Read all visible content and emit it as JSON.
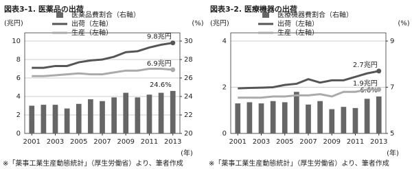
{
  "chart_data": [
    {
      "type": "bar-line",
      "title": "図表3-1. 医薬品の出荷",
      "y_label": "(兆円)",
      "y2_label": "(%)",
      "x_label": "(年)",
      "note": "※「薬事工業生産動態統計」（厚生労働省）より、筆者作成",
      "x": [
        2001,
        2002,
        2003,
        2004,
        2005,
        2006,
        2007,
        2008,
        2009,
        2010,
        2011,
        2012,
        2013
      ],
      "xlim": [
        2000.4,
        2013.6
      ],
      "xticks": [
        2001,
        2003,
        2005,
        2007,
        2009,
        2011,
        2013
      ],
      "ylim": [
        0,
        10
      ],
      "yticks": [
        0,
        2,
        4,
        6,
        8,
        10
      ],
      "y2lim": [
        20,
        30
      ],
      "y2ticks": [
        20,
        22,
        24,
        26,
        28,
        30
      ],
      "grid": true,
      "series": [
        {
          "name": "医薬品費割合（右軸）",
          "kind": "bar",
          "axis": "y2",
          "color": "#666666",
          "values": [
            23.0,
            23.1,
            23.1,
            22.7,
            23.2,
            23.7,
            23.5,
            23.9,
            24.4,
            23.9,
            24.2,
            24.4,
            24.6
          ],
          "value_labels": [
            null,
            null,
            null,
            null,
            null,
            null,
            null,
            null,
            null,
            null,
            null,
            null,
            "24.6%"
          ]
        },
        {
          "name": "出荷（左軸）",
          "kind": "line",
          "color": "#555555",
          "values": [
            7.1,
            7.1,
            7.3,
            7.3,
            7.7,
            7.9,
            8.0,
            8.3,
            8.8,
            8.9,
            9.3,
            9.6,
            9.8
          ],
          "value_labels": [
            null,
            null,
            null,
            null,
            null,
            null,
            null,
            null,
            null,
            null,
            null,
            null,
            "9.8兆円"
          ]
        },
        {
          "name": "生産（左軸）",
          "kind": "line",
          "color": "#aaaaaa",
          "values": [
            6.2,
            6.2,
            6.3,
            6.4,
            6.5,
            6.4,
            6.4,
            6.6,
            6.8,
            6.8,
            7.0,
            7.0,
            6.9
          ],
          "value_labels": [
            null,
            null,
            null,
            null,
            null,
            null,
            null,
            null,
            null,
            null,
            null,
            null,
            "6.9兆円"
          ]
        }
      ]
    },
    {
      "type": "bar-line",
      "title": "図表3-2. 医療機器の出荷",
      "y_label": "(兆円)",
      "y2_label": "(%)",
      "x_label": "(年)",
      "note": "※「薬事工業生産動態統計」（厚生労働省）より、筆者作成",
      "x": [
        2001,
        2002,
        2003,
        2004,
        2005,
        2006,
        2007,
        2008,
        2009,
        2010,
        2011,
        2012,
        2013
      ],
      "xlim": [
        2000.4,
        2013.6
      ],
      "xticks": [
        2001,
        2003,
        2005,
        2007,
        2009,
        2011,
        2013
      ],
      "ylim": [
        0,
        4
      ],
      "yticks": [
        0,
        2,
        4
      ],
      "y2lim": [
        5,
        9
      ],
      "y2ticks": [
        5,
        7,
        9
      ],
      "grid": true,
      "series": [
        {
          "name": "医療機器費割合（右軸）",
          "kind": "bar",
          "axis": "y2",
          "color": "#666666",
          "values": [
            6.3,
            6.35,
            6.3,
            6.4,
            6.35,
            6.8,
            6.25,
            6.4,
            6.05,
            6.15,
            6.1,
            6.5,
            6.6
          ],
          "value_labels": [
            null,
            null,
            null,
            null,
            null,
            null,
            null,
            null,
            null,
            null,
            null,
            null,
            "6.6%"
          ]
        },
        {
          "name": "出荷（左軸）",
          "kind": "line",
          "color": "#555555",
          "values": [
            1.95,
            1.97,
            1.98,
            2.0,
            2.1,
            2.15,
            2.35,
            2.2,
            2.3,
            2.3,
            2.45,
            2.6,
            2.7
          ],
          "value_labels": [
            null,
            null,
            null,
            null,
            null,
            null,
            null,
            null,
            null,
            null,
            null,
            null,
            "2.7兆円"
          ]
        },
        {
          "name": "生産（左軸）",
          "kind": "line",
          "color": "#aaaaaa",
          "values": [
            1.55,
            1.55,
            1.55,
            1.6,
            1.6,
            1.65,
            1.65,
            1.7,
            1.6,
            1.8,
            1.8,
            1.9,
            1.9
          ],
          "value_labels": [
            null,
            null,
            null,
            null,
            null,
            null,
            null,
            null,
            null,
            null,
            null,
            null,
            "1.9兆円"
          ]
        }
      ]
    }
  ]
}
